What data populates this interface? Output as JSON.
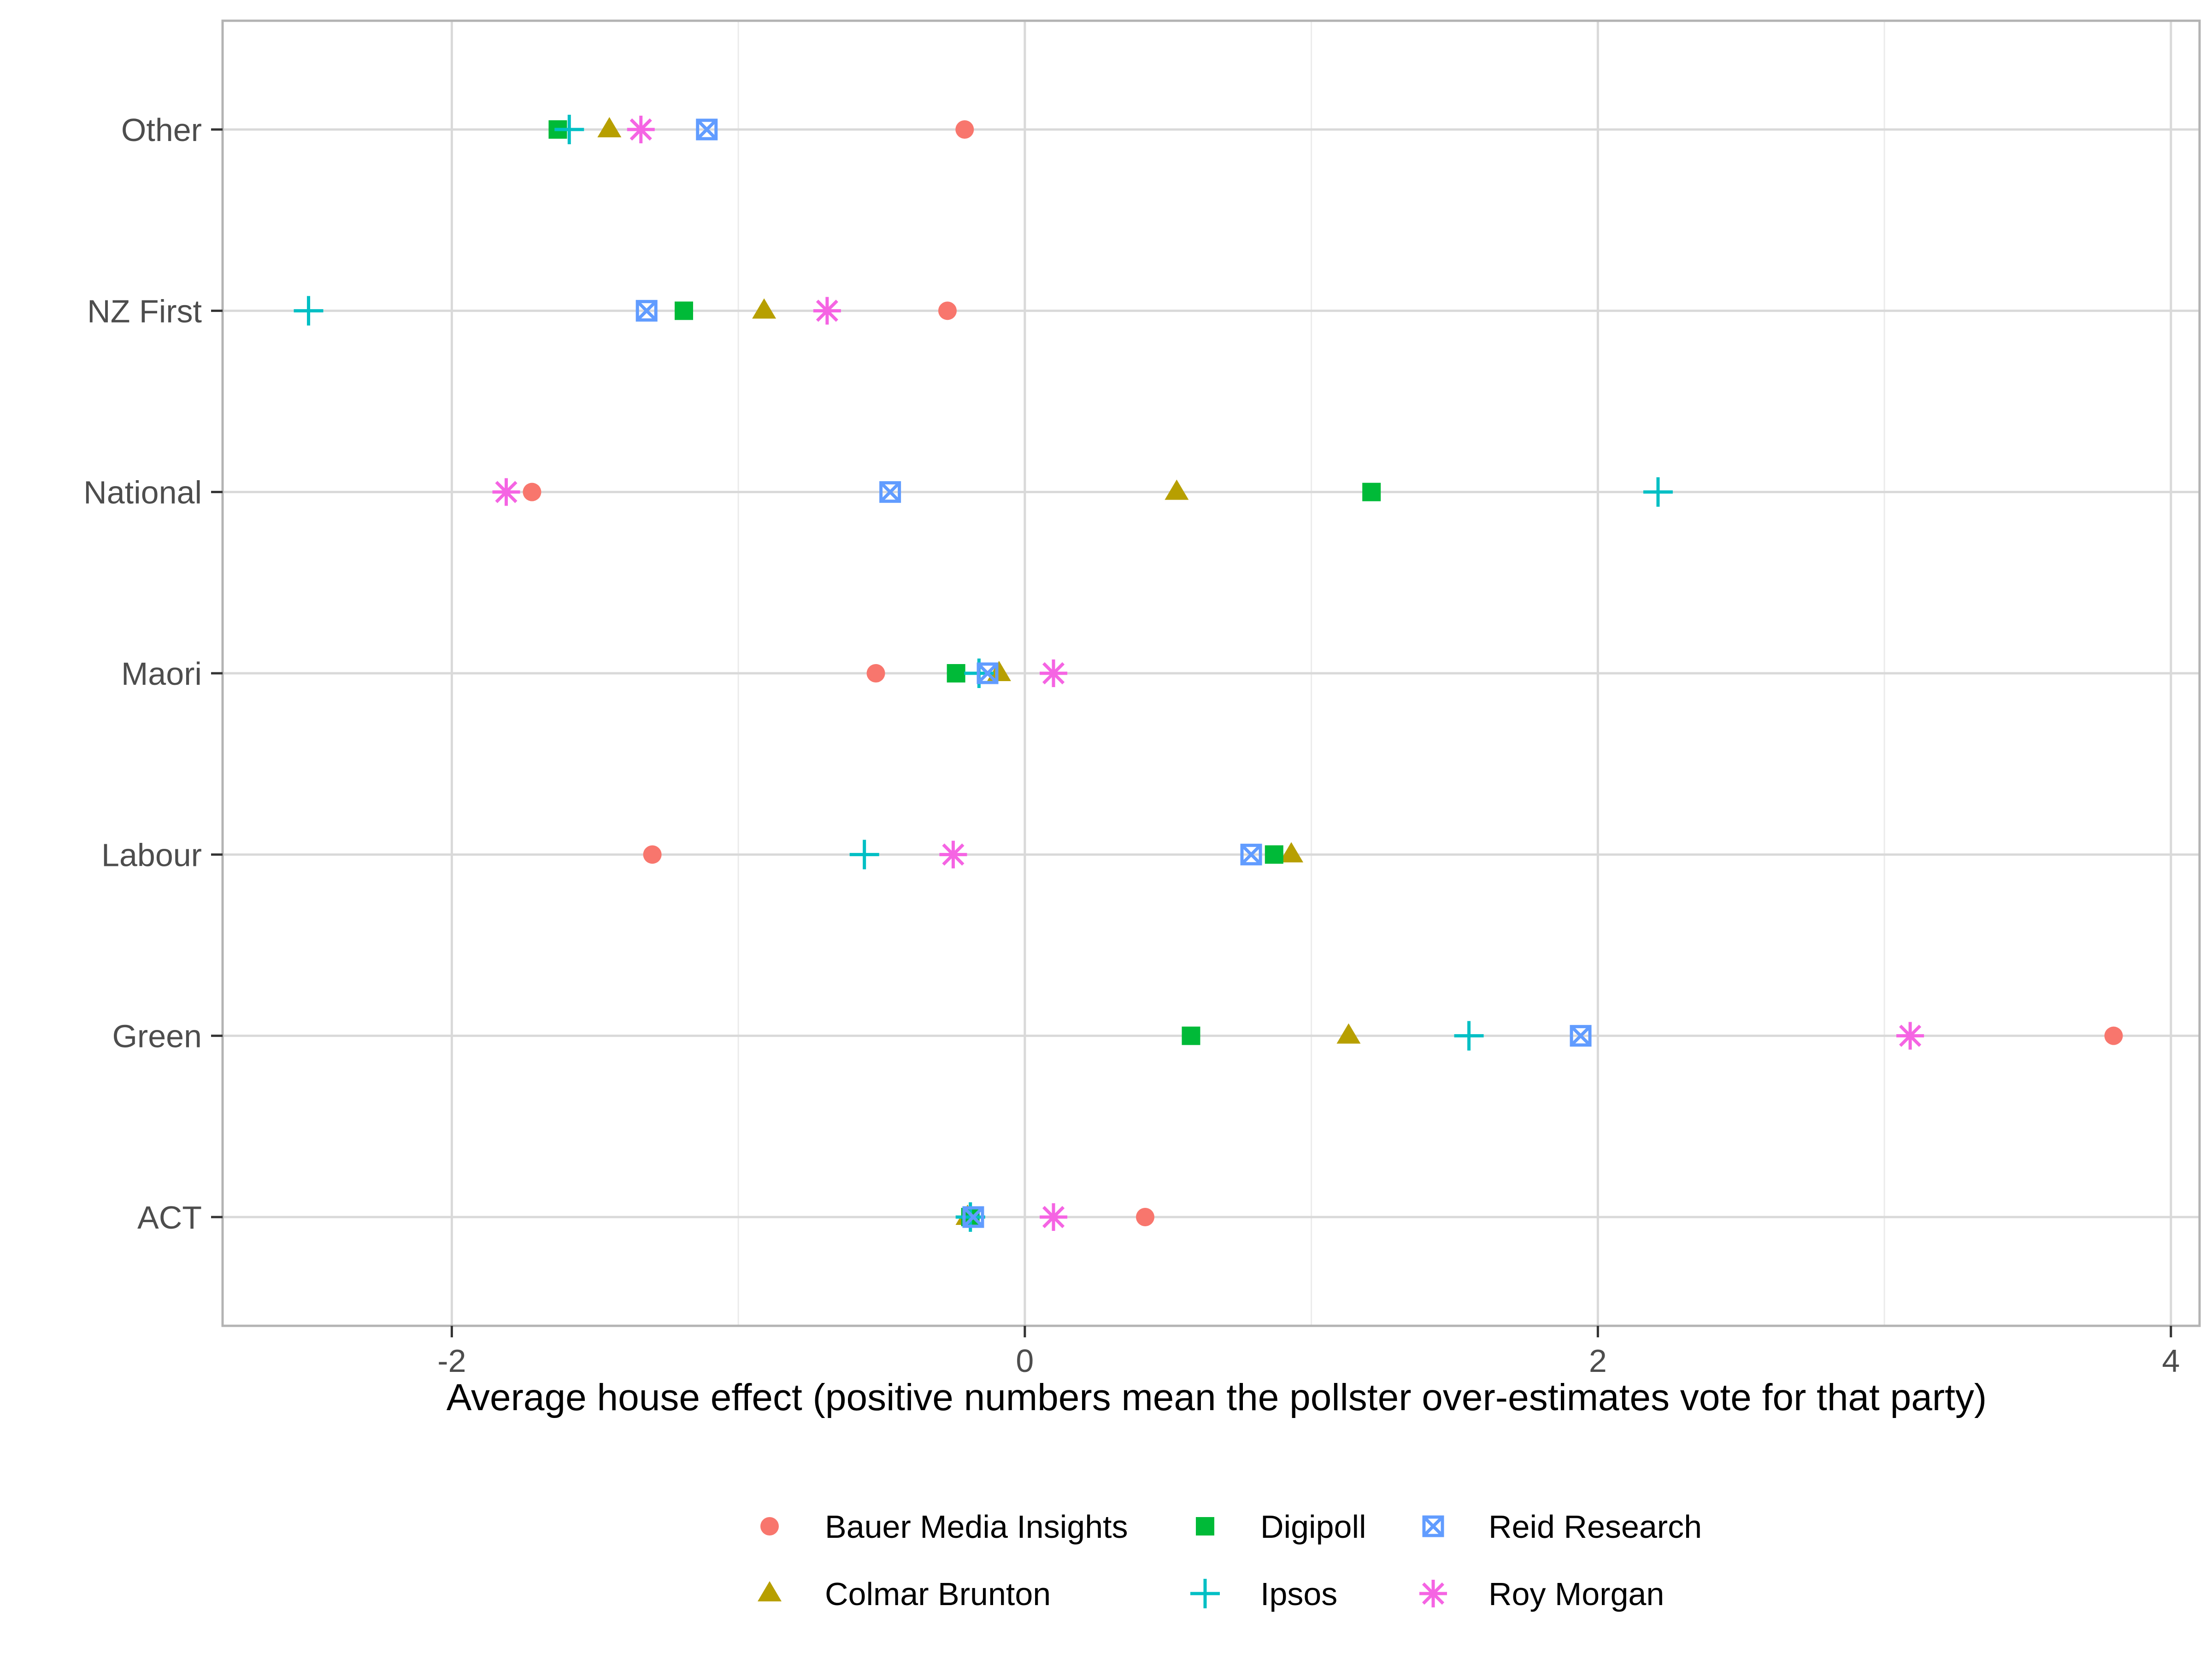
{
  "chart_data": {
    "type": "scatter",
    "title": "",
    "xlabel": "Average house effect (positive numbers mean the pollster over-estimates vote for that party)",
    "ylabel": "",
    "xlim": [
      -2.8,
      4.1
    ],
    "x_ticks": [
      -2,
      0,
      2,
      4
    ],
    "x_tick_labels": [
      "-2",
      "0",
      "2",
      "4"
    ],
    "categories": [
      "ACT",
      "Green",
      "Labour",
      "Maori",
      "National",
      "NZ First",
      "Other"
    ],
    "grid": true,
    "legend_position": "bottom",
    "series": [
      {
        "name": "Bauer Media Insights",
        "shape": "circle",
        "color": "#F8766D",
        "values": [
          0.42,
          3.8,
          -1.3,
          -0.52,
          -1.72,
          -0.27,
          -0.21
        ]
      },
      {
        "name": "Colmar Brunton",
        "shape": "triangle",
        "color": "#B79F00",
        "values": [
          -0.2,
          1.13,
          0.93,
          -0.09,
          0.53,
          -0.91,
          -1.45
        ]
      },
      {
        "name": "Digipoll",
        "shape": "square",
        "color": "#00BA38",
        "values": [
          -0.19,
          0.58,
          0.87,
          -0.24,
          1.21,
          -1.19,
          -1.63
        ]
      },
      {
        "name": "Ipsos",
        "shape": "plus",
        "color": "#00BFC4",
        "values": [
          -0.19,
          1.55,
          -0.56,
          -0.16,
          2.21,
          -2.5,
          -1.59
        ]
      },
      {
        "name": "Reid Research",
        "shape": "square-x",
        "color": "#619CFF",
        "values": [
          -0.18,
          1.94,
          0.79,
          -0.13,
          -0.47,
          -1.32,
          -1.11
        ]
      },
      {
        "name": "Roy Morgan",
        "shape": "asterisk",
        "color": "#F564E3",
        "values": [
          0.1,
          3.09,
          -0.25,
          0.1,
          -1.81,
          -0.69,
          -1.34
        ]
      }
    ]
  }
}
